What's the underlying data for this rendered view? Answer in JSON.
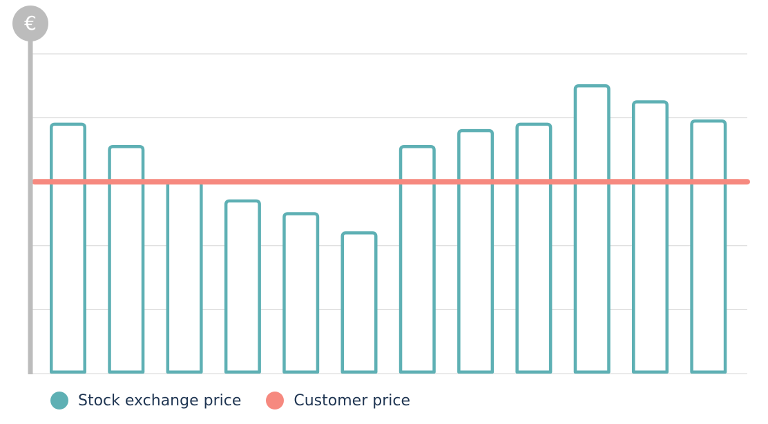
{
  "chart_data": {
    "type": "bar",
    "y_unit_symbol": "€",
    "categories": [
      "",
      "",
      "",
      "",
      "",
      "",
      "",
      "",
      "",
      "",
      "",
      ""
    ],
    "series": [
      {
        "name": "Stock exchange price",
        "style": "outlined-bar",
        "values": [
          3.9,
          3.55,
          3.0,
          2.7,
          2.5,
          2.2,
          3.55,
          3.8,
          3.9,
          4.5,
          4.25,
          3.95
        ]
      },
      {
        "name": "Customer price",
        "style": "horizontal-line",
        "value": 3.0
      }
    ],
    "ylim": [
      0,
      5
    ],
    "grid": true,
    "legend_position": "bottom-left",
    "colors": {
      "stock": "#5eb0b4",
      "customer": "#f6897f",
      "axis": "#bcbcbc",
      "grid": "#d6d6d6",
      "text": "#1f3552"
    }
  }
}
